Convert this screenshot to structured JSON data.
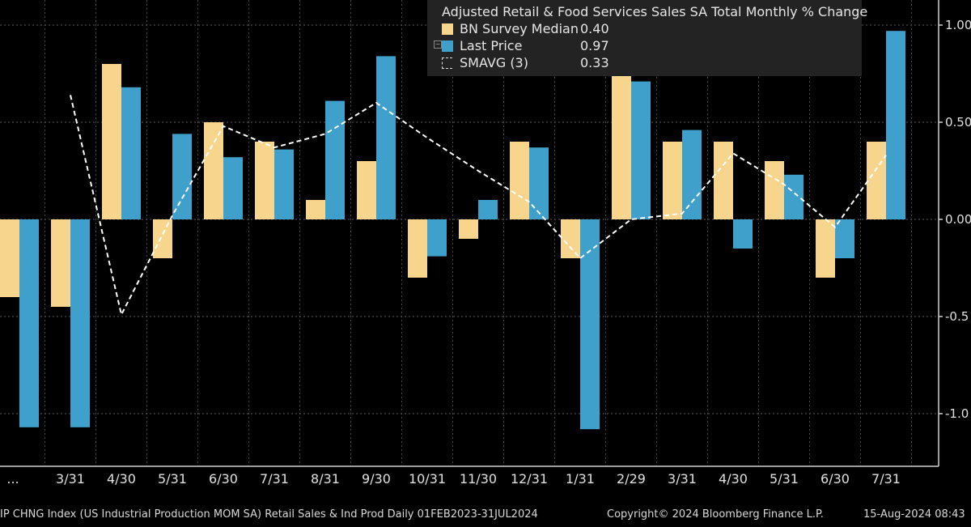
{
  "chart_data": {
    "type": "bar",
    "title": "Adjusted Retail & Food Services Sales SA Total Monthly % Change",
    "categories": [
      "...",
      "3/31",
      "4/30",
      "5/31",
      "6/30",
      "7/31",
      "8/31",
      "9/30",
      "10/31",
      "11/30",
      "12/31",
      "1/31",
      "2/29",
      "3/31",
      "4/30",
      "5/31",
      "6/30",
      "7/31"
    ],
    "series": [
      {
        "name": "BN Survey Median",
        "color": "#f7d58d",
        "values": [
          -0.4,
          -0.45,
          0.8,
          -0.2,
          0.5,
          0.4,
          0.1,
          0.3,
          -0.3,
          -0.1,
          0.4,
          -0.2,
          0.8,
          0.4,
          0.4,
          0.3,
          -0.3,
          0.4
        ]
      },
      {
        "name": "Last Price",
        "color": "#3fa0cc",
        "values": [
          -1.07,
          -1.07,
          0.68,
          0.44,
          0.32,
          0.36,
          0.61,
          0.84,
          -0.19,
          0.1,
          0.37,
          -1.08,
          0.71,
          0.46,
          -0.15,
          0.23,
          -0.2,
          0.97
        ]
      },
      {
        "name": "SMAVG (3)",
        "color": "#ffffff",
        "style": "dashed-line",
        "values": [
          null,
          0.64,
          -0.49,
          0.02,
          0.48,
          0.37,
          0.44,
          0.6,
          0.42,
          0.25,
          0.09,
          -0.2,
          0.0,
          0.03,
          0.34,
          0.18,
          -0.04,
          0.33
        ]
      }
    ],
    "ylim": [
      -1.3,
      1.1
    ],
    "yticks": [
      1.0,
      0.5,
      0.0,
      -0.5,
      -1.0
    ],
    "ytick_labels": [
      "1.00",
      "0.50",
      "0.00",
      "-0.5",
      "-1.0"
    ],
    "xlabel": "",
    "ylabel": "",
    "grid": true,
    "legend_position": "top-right"
  },
  "legend": {
    "title": "Adjusted Retail & Food Services Sales SA Total Monthly % Change",
    "items": [
      {
        "label": "BN Survey Median",
        "value": "0.40"
      },
      {
        "label": "Last Price",
        "value": "0.97"
      },
      {
        "label": "SMAVG (3)",
        "value": "0.33"
      }
    ]
  },
  "footer": {
    "left": "IP CHNG Index (US Industrial Production MOM SA) Retail Sales & Ind Prod  Daily 01FEB2023-31JUL2024",
    "center": "Copyright© 2024 Bloomberg Finance L.P.",
    "right": "15-Aug-2024 08:43"
  }
}
